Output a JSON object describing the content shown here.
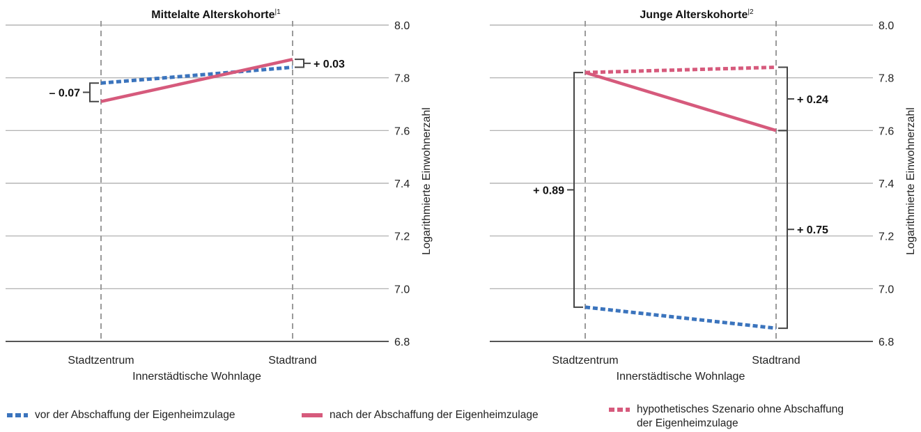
{
  "chart_data": [
    {
      "type": "line",
      "title": "Mittelalte Alterskohorte",
      "title_footnote": "1",
      "xlabel": "Innerstädtische Wohnlage",
      "ylabel": "Logarithmierte Einwohnerzahl",
      "categories": [
        "Stadtzentrum",
        "Stadtrand"
      ],
      "ylim": [
        6.8,
        8.0
      ],
      "yticks": [
        "8.0",
        "7.8",
        "7.6",
        "7.4",
        "7.2",
        "7.0",
        "6.8"
      ],
      "grid": true,
      "series": [
        {
          "key": "vor",
          "values": [
            7.78,
            7.84
          ]
        },
        {
          "key": "nach",
          "values": [
            7.71,
            7.87
          ]
        }
      ],
      "annotations": [
        {
          "label": "– 0.07",
          "category": "Stadtzentrum",
          "from": 7.71,
          "to": 7.78,
          "side": "left"
        },
        {
          "label": "+ 0.03",
          "category": "Stadtrand",
          "from": 7.84,
          "to": 7.87,
          "side": "right"
        }
      ]
    },
    {
      "type": "line",
      "title": "Junge Alterskohorte",
      "title_footnote": "2",
      "xlabel": "Innerstädtische Wohnlage",
      "ylabel": "Logarithmierte Einwohnerzahl",
      "categories": [
        "Stadtzentrum",
        "Stadtrand"
      ],
      "ylim": [
        6.8,
        8.0
      ],
      "yticks": [
        "8.0",
        "7.8",
        "7.6",
        "7.4",
        "7.2",
        "7.0",
        "6.8"
      ],
      "grid": true,
      "series": [
        {
          "key": "vor",
          "values": [
            6.93,
            6.85
          ]
        },
        {
          "key": "nach",
          "values": [
            7.82,
            7.6
          ]
        },
        {
          "key": "hypo",
          "values": [
            7.82,
            7.84
          ]
        }
      ],
      "annotations": [
        {
          "label": "+ 0.89",
          "category": "Stadtzentrum",
          "from": 6.93,
          "to": 7.82,
          "side": "left"
        },
        {
          "label": "+ 0.24",
          "category": "Stadtrand",
          "from": 7.6,
          "to": 7.84,
          "side": "right"
        },
        {
          "label": "+ 0.75",
          "category": "Stadtrand",
          "from": 6.85,
          "to": 7.6,
          "side": "right"
        }
      ]
    }
  ],
  "legend": {
    "vor": {
      "label": "vor der Abschaffung der Eigenheimzulage",
      "color": "#3b74bd",
      "style": "dotted"
    },
    "nach": {
      "label": "nach der Abschaffung der Eigenheimzulage",
      "color": "#d65a7c",
      "style": "solid"
    },
    "hypo": {
      "label": "hypothetisches Szenario ohne Abschaffung\nder Eigenheimzulage",
      "color": "#d65a7c",
      "style": "dotted"
    }
  }
}
